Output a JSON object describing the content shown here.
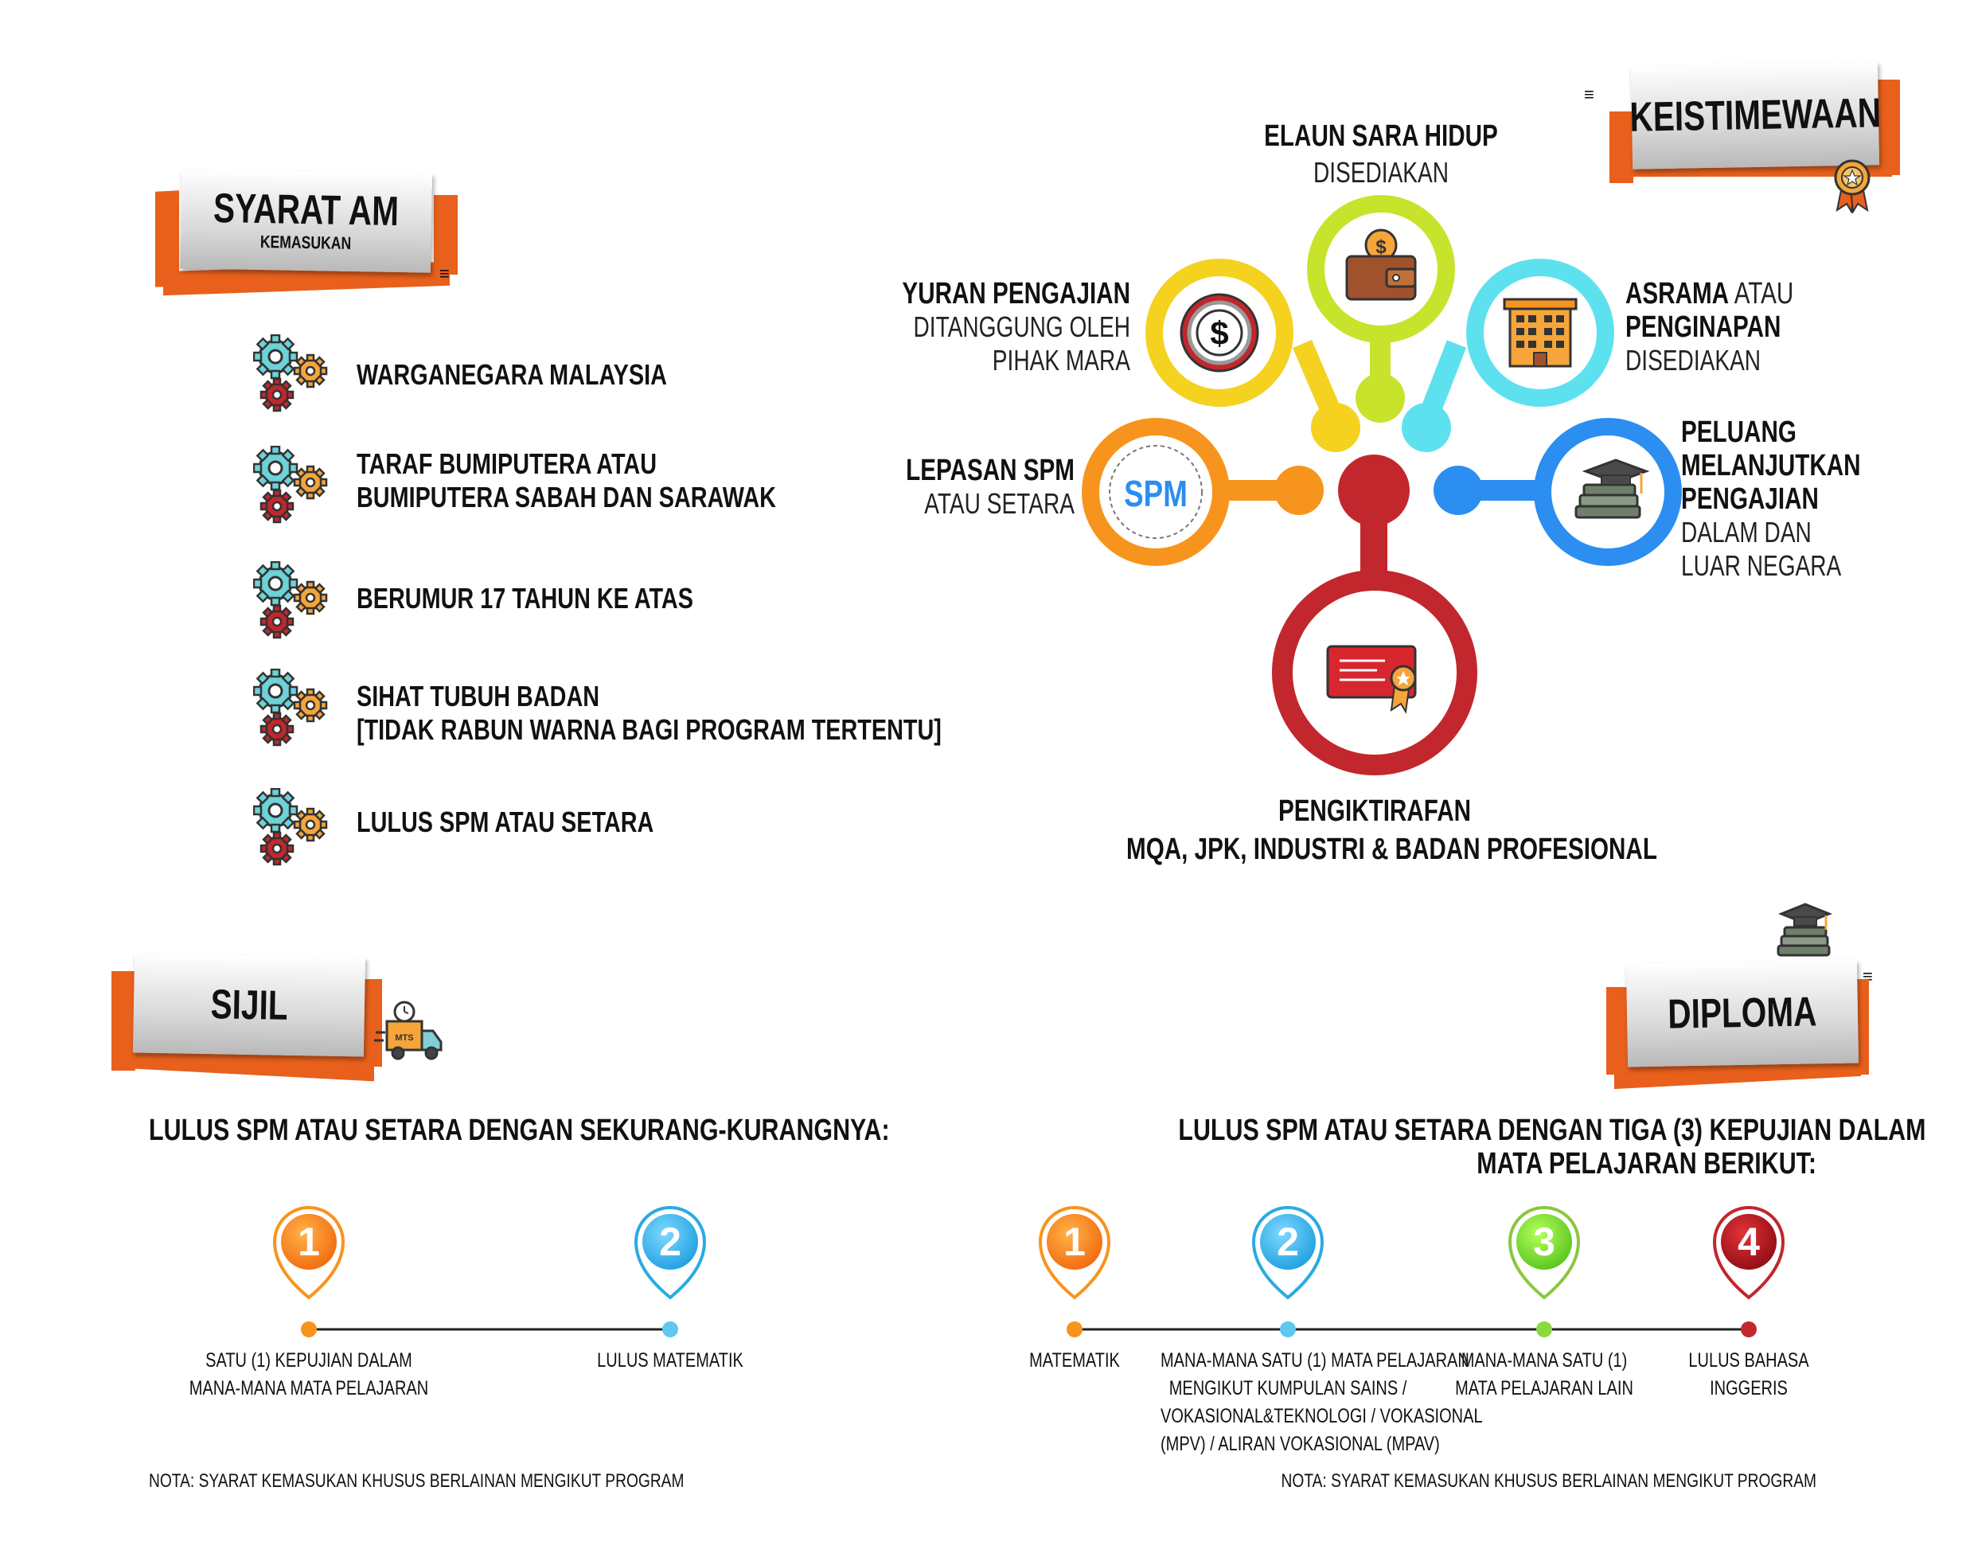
{
  "syarat_am": {
    "title": "SYARAT AM",
    "subtitle": "KEMASUKAN",
    "items": [
      {
        "line1": "WARGANEGARA MALAYSIA",
        "line2": ""
      },
      {
        "line1": "TARAF BUMIPUTERA ATAU",
        "line2": "BUMIPUTERA SABAH DAN SARAWAK"
      },
      {
        "line1": "BERUMUR 17 TAHUN KE ATAS",
        "line2": ""
      },
      {
        "line1": "SIHAT TUBUH BADAN",
        "line2": "[TIDAK RABUN WARNA BAGI PROGRAM TERTENTU]"
      },
      {
        "line1": "LULUS SPM ATAU SETARA",
        "line2": ""
      }
    ]
  },
  "keistimewaan": {
    "title": "KEISTIMEWAAN",
    "elaun": {
      "title": "ELAUN SARA HIDUP",
      "sub": "DISEDIAKAN"
    },
    "yuran": {
      "title": "YURAN PENGAJIAN",
      "sub1": "DITANGGUNG OLEH",
      "sub2": "PIHAK MARA"
    },
    "asrama": {
      "title_bold": "ASRAMA",
      "title_rest": " ATAU",
      "title2": "PENGINAPAN",
      "sub": "DISEDIAKAN"
    },
    "lepasan": {
      "title": "LEPASAN SPM",
      "sub": "ATAU SETARA",
      "badge": "SPM"
    },
    "peluang": {
      "title1": "PELUANG",
      "title2": "MELANJUTKAN",
      "title3": "PENGAJIAN",
      "sub1": "DALAM DAN",
      "sub2": "LUAR NEGARA"
    },
    "pengiktirafan": {
      "title": "PENGIKTIRAFAN",
      "sub": "MQA, JPK, INDUSTRI & BADAN PROFESIONAL"
    }
  },
  "sijil": {
    "title": "SIJIL",
    "truck_label": "MTS",
    "heading": "LULUS SPM ATAU SETARA DENGAN SEKURANG-KURANGNYA:",
    "steps": [
      {
        "num": "1",
        "line1": "SATU (1) KEPUJIAN DALAM",
        "line2": "MANA-MANA MATA PELAJARAN"
      },
      {
        "num": "2",
        "line1": "LULUS MATEMATIK",
        "line2": ""
      }
    ],
    "note": "NOTA: SYARAT KEMASUKAN KHUSUS BERLAINAN MENGIKUT PROGRAM"
  },
  "diploma": {
    "title": "DIPLOMA",
    "heading1": "LULUS SPM ATAU SETARA DENGAN TIGA (3) KEPUJIAN DALAM",
    "heading2": "MATA PELAJARAN BERIKUT:",
    "steps": [
      {
        "num": "1",
        "lines": [
          "MATEMATIK"
        ]
      },
      {
        "num": "2",
        "lines": [
          "MANA-MANA SATU (1) MATA PELAJARAN",
          "MENGIKUT KUMPULAN SAINS /",
          "VOKASIONAL&TEKNOLOGI / VOKASIONAL",
          "(MPV) / ALIRAN VOKASIONAL (MPAV)"
        ]
      },
      {
        "num": "3",
        "lines": [
          "MANA-MANA SATU (1)",
          "MATA PELAJARAN LAIN"
        ]
      },
      {
        "num": "4",
        "lines": [
          "LULUS BAHASA",
          "INGGERIS"
        ]
      }
    ],
    "note": "NOTA: SYARAT KEMASUKAN KHUSUS BERLAINAN MENGIKUT PROGRAM"
  },
  "colors": {
    "orange": "#f7941d",
    "blue_light": "#29abe2",
    "green": "#8cc63f",
    "red": "#c1272d",
    "yellow_green": "#c8e32b",
    "yellow": "#f4d21f",
    "cyan": "#5ee1ef",
    "blue": "#2b8ef0",
    "ribbon": "#e8601c"
  }
}
